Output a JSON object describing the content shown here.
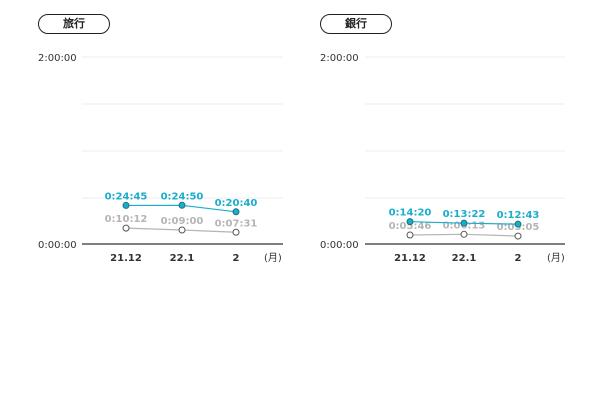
{
  "chart_data": [
    {
      "type": "line",
      "title": "旅行",
      "categories": [
        "21.12",
        "22.1",
        "2"
      ],
      "x_unit": "(月)",
      "y_ticks": [
        "2:00:00",
        "0:00:00"
      ],
      "ylim": [
        0,
        7200
      ],
      "grid": true,
      "series": [
        {
          "color": "#1aaecc",
          "labels": [
            "0:24:45",
            "0:24:50",
            "0:20:40"
          ],
          "values": [
            1485,
            1490,
            1240
          ]
        },
        {
          "color": "#b5b5b5",
          "labels": [
            "0:10:12",
            "0:09:00",
            "0:07:31"
          ],
          "values": [
            612,
            540,
            451
          ]
        }
      ]
    },
    {
      "type": "line",
      "title": "銀行",
      "categories": [
        "21.12",
        "22.1",
        "2"
      ],
      "x_unit": "(月)",
      "y_ticks": [
        "2:00:00",
        "0:00:00"
      ],
      "ylim": [
        0,
        7200
      ],
      "grid": true,
      "series": [
        {
          "color": "#1aaecc",
          "labels": [
            "0:14:20",
            "0:13:22",
            "0:12:43"
          ],
          "values": [
            860,
            802,
            763
          ]
        },
        {
          "color": "#b5b5b5",
          "labels": [
            "0:05:46",
            "0:06:13",
            "0:05:05"
          ],
          "values": [
            346,
            373,
            305
          ]
        }
      ]
    }
  ]
}
